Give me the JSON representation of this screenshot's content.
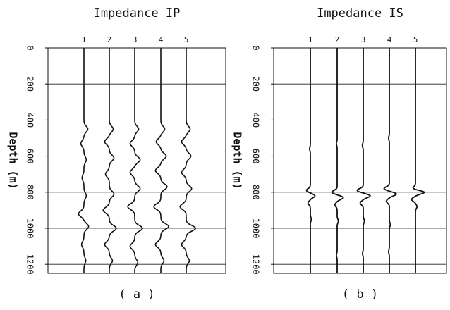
{
  "chart_data": [
    {
      "panel_label": "( a )",
      "type": "line",
      "title": "Impedance IP",
      "ylabel": "Depth (m)",
      "ylim": [
        0,
        1250
      ],
      "y_axis_inverted": true,
      "yticks": [
        0,
        200,
        400,
        600,
        800,
        1000,
        1200
      ],
      "trace_labels": [
        "1",
        "2",
        "3",
        "4",
        "5"
      ],
      "grid": "horizontal",
      "series": [
        {
          "name": "1",
          "wiggles": [
            {
              "depth": 450,
              "amp": 0.25
            },
            {
              "depth": 530,
              "amp": -0.2
            },
            {
              "depth": 620,
              "amp": 0.15
            },
            {
              "depth": 720,
              "amp": -0.12
            },
            {
              "depth": 820,
              "amp": 0.15
            },
            {
              "depth": 920,
              "amp": -0.35
            },
            {
              "depth": 990,
              "amp": 0.3
            },
            {
              "depth": 1090,
              "amp": -0.15
            },
            {
              "depth": 1180,
              "amp": 0.12
            }
          ]
        },
        {
          "name": "2",
          "wiggles": [
            {
              "depth": 450,
              "amp": 0.25
            },
            {
              "depth": 520,
              "amp": -0.3
            },
            {
              "depth": 610,
              "amp": 0.3
            },
            {
              "depth": 700,
              "amp": -0.25
            },
            {
              "depth": 810,
              "amp": 0.3
            },
            {
              "depth": 900,
              "amp": -0.4
            },
            {
              "depth": 1000,
              "amp": 0.45
            },
            {
              "depth": 1090,
              "amp": -0.3
            },
            {
              "depth": 1180,
              "amp": 0.2
            }
          ]
        },
        {
          "name": "3",
          "wiggles": [
            {
              "depth": 450,
              "amp": 0.25
            },
            {
              "depth": 530,
              "amp": -0.3
            },
            {
              "depth": 620,
              "amp": 0.35
            },
            {
              "depth": 690,
              "amp": -0.3
            },
            {
              "depth": 780,
              "amp": 0.35
            },
            {
              "depth": 880,
              "amp": -0.45
            },
            {
              "depth": 1000,
              "amp": 0.5
            },
            {
              "depth": 1100,
              "amp": -0.3
            },
            {
              "depth": 1190,
              "amp": 0.2
            }
          ]
        },
        {
          "name": "4",
          "wiggles": [
            {
              "depth": 450,
              "amp": 0.25
            },
            {
              "depth": 520,
              "amp": -0.3
            },
            {
              "depth": 600,
              "amp": 0.35
            },
            {
              "depth": 680,
              "amp": -0.35
            },
            {
              "depth": 770,
              "amp": 0.4
            },
            {
              "depth": 880,
              "amp": -0.45
            },
            {
              "depth": 990,
              "amp": 0.5
            },
            {
              "depth": 1090,
              "amp": -0.35
            },
            {
              "depth": 1180,
              "amp": 0.2
            }
          ]
        },
        {
          "name": "5",
          "wiggles": [
            {
              "depth": 450,
              "amp": 0.25
            },
            {
              "depth": 520,
              "amp": -0.3
            },
            {
              "depth": 600,
              "amp": 0.3
            },
            {
              "depth": 690,
              "amp": -0.3
            },
            {
              "depth": 780,
              "amp": 0.35
            },
            {
              "depth": 880,
              "amp": -0.4
            },
            {
              "depth": 1000,
              "amp": 0.6
            },
            {
              "depth": 1090,
              "amp": -0.3
            },
            {
              "depth": 1180,
              "amp": 0.2
            }
          ]
        }
      ]
    },
    {
      "panel_label": "( b )",
      "type": "line",
      "title": "Impedance IS",
      "ylabel": "Depth (m)",
      "ylim": [
        0,
        1250
      ],
      "y_axis_inverted": true,
      "yticks": [
        0,
        200,
        400,
        600,
        800,
        1000,
        1200
      ],
      "trace_labels": [
        "1",
        "2",
        "3",
        "4",
        "5"
      ],
      "grid": "horizontal",
      "series": [
        {
          "name": "1",
          "wiggles": [
            {
              "depth": 560,
              "amp": -0.05
            },
            {
              "depth": 790,
              "amp": -0.25
            },
            {
              "depth": 820,
              "amp": 0.3
            },
            {
              "depth": 860,
              "amp": -0.15
            },
            {
              "depth": 950,
              "amp": 0.06
            }
          ]
        },
        {
          "name": "2",
          "wiggles": [
            {
              "depth": 530,
              "amp": -0.05
            },
            {
              "depth": 800,
              "amp": -0.35
            },
            {
              "depth": 830,
              "amp": 0.4
            },
            {
              "depth": 870,
              "amp": -0.15
            },
            {
              "depth": 960,
              "amp": 0.08
            },
            {
              "depth": 1150,
              "amp": -0.05
            }
          ]
        },
        {
          "name": "3",
          "wiggles": [
            {
              "depth": 540,
              "amp": -0.06
            },
            {
              "depth": 790,
              "amp": -0.4
            },
            {
              "depth": 820,
              "amp": 0.45
            },
            {
              "depth": 860,
              "amp": -0.2
            },
            {
              "depth": 960,
              "amp": 0.08
            },
            {
              "depth": 1140,
              "amp": -0.05
            }
          ]
        },
        {
          "name": "4",
          "wiggles": [
            {
              "depth": 500,
              "amp": -0.05
            },
            {
              "depth": 780,
              "amp": -0.35
            },
            {
              "depth": 810,
              "amp": 0.45
            },
            {
              "depth": 850,
              "amp": -0.2
            },
            {
              "depth": 980,
              "amp": 0.06
            },
            {
              "depth": 1130,
              "amp": -0.05
            }
          ]
        },
        {
          "name": "5",
          "wiggles": [
            {
              "depth": 780,
              "amp": -0.2
            },
            {
              "depth": 800,
              "amp": 0.6
            },
            {
              "depth": 840,
              "amp": -0.25
            },
            {
              "depth": 880,
              "amp": 0.1
            }
          ]
        }
      ]
    }
  ]
}
